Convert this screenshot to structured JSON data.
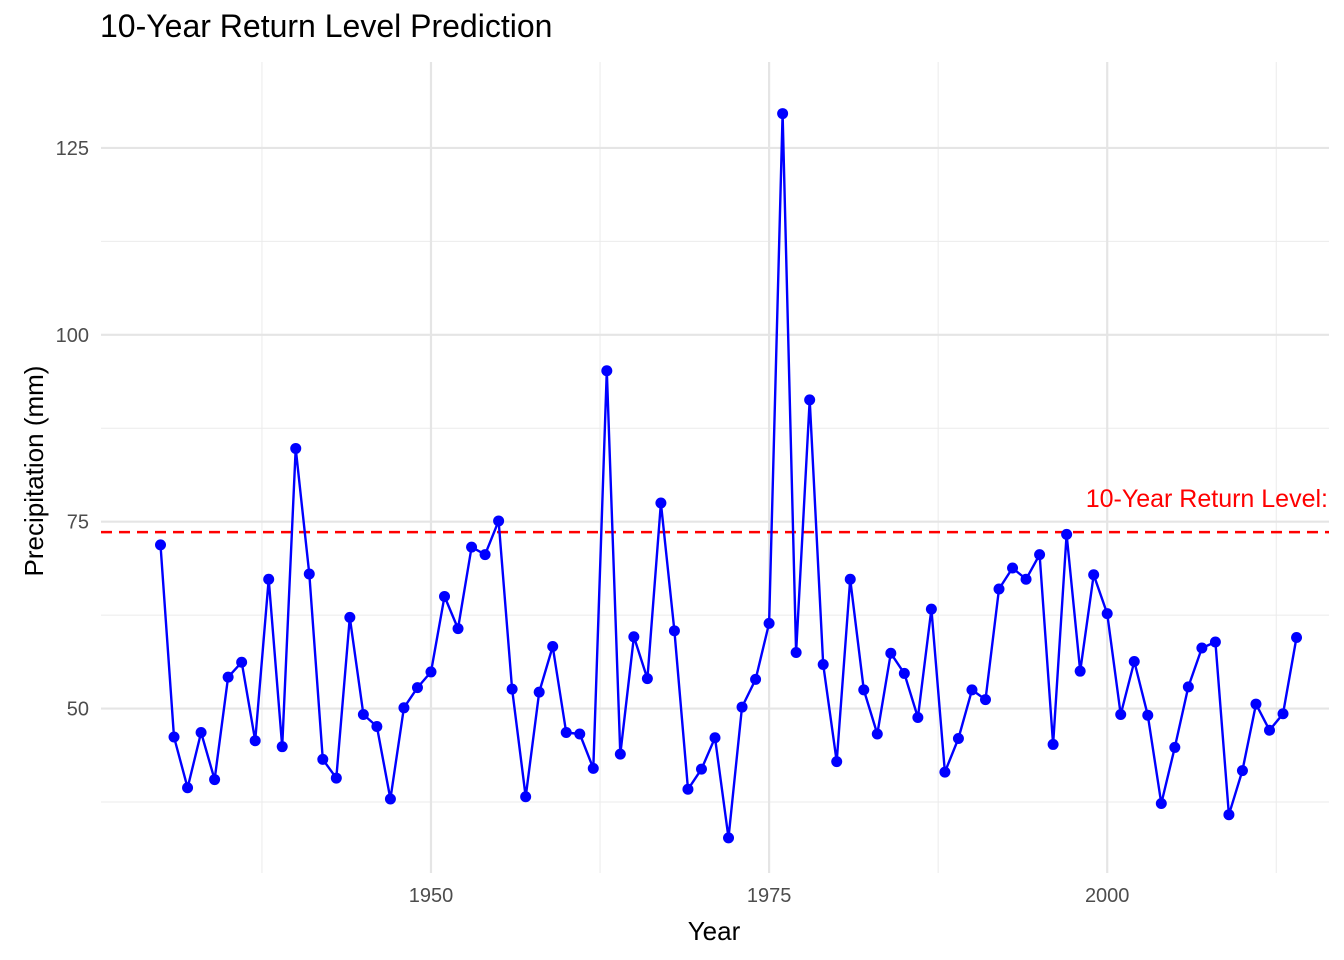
{
  "chart_data": {
    "type": "line",
    "title": "10-Year Return Level Prediction",
    "xlabel": "Year",
    "ylabel": "Precipitation (mm)",
    "xlim": [
      1925.6,
      2016.4
    ],
    "ylim": [
      28.0,
      136.5
    ],
    "x_ticks": [
      1950,
      1975,
      2000
    ],
    "y_ticks": [
      50,
      75,
      100,
      125
    ],
    "x_minor": [
      1937.5,
      1962.5,
      1987.5,
      2012.5
    ],
    "y_minor": [
      37.5,
      62.5,
      87.5,
      112.5
    ],
    "grid": true,
    "series": [
      {
        "color": "#0000ff",
        "x": [
          1930,
          1931,
          1932,
          1933,
          1934,
          1935,
          1936,
          1937,
          1938,
          1939,
          1940,
          1941,
          1942,
          1943,
          1944,
          1945,
          1946,
          1947,
          1948,
          1949,
          1950,
          1951,
          1952,
          1953,
          1954,
          1955,
          1956,
          1957,
          1958,
          1959,
          1960,
          1961,
          1962,
          1963,
          1964,
          1965,
          1966,
          1967,
          1968,
          1969,
          1970,
          1971,
          1972,
          1973,
          1974,
          1975,
          1976,
          1977,
          1978,
          1979,
          1980,
          1981,
          1982,
          1983,
          1984,
          1985,
          1986,
          1987,
          1988,
          1989,
          1990,
          1991,
          1992,
          1993,
          1994,
          1995,
          1996,
          1997,
          1998,
          1999,
          2000,
          2001,
          2002,
          2003,
          2004,
          2005,
          2006,
          2007,
          2008,
          2009,
          2010,
          2011,
          2012,
          2013,
          2014
        ],
        "y": [
          71.9,
          46.2,
          39.4,
          46.8,
          40.5,
          54.2,
          56.2,
          45.7,
          67.3,
          44.9,
          84.8,
          68.0,
          43.2,
          40.7,
          62.2,
          49.2,
          47.6,
          37.9,
          50.1,
          52.8,
          54.9,
          65.0,
          60.7,
          71.6,
          70.6,
          75.1,
          52.6,
          38.2,
          52.2,
          58.3,
          46.8,
          46.6,
          42.0,
          95.2,
          43.9,
          59.6,
          54.0,
          77.5,
          60.4,
          39.2,
          41.9,
          46.1,
          32.7,
          50.2,
          53.9,
          61.4,
          129.6,
          57.5,
          91.3,
          55.9,
          42.9,
          67.3,
          52.5,
          46.6,
          57.4,
          54.7,
          48.8,
          63.3,
          41.5,
          46.0,
          52.5,
          51.2,
          66.0,
          68.8,
          67.3,
          70.6,
          45.2,
          73.3,
          55.0,
          67.9,
          62.7,
          49.2,
          56.3,
          49.1,
          37.3,
          44.8,
          52.9,
          58.1,
          58.9,
          35.8,
          41.7,
          50.6,
          47.1,
          49.3,
          59.5
        ]
      }
    ],
    "reference_line": {
      "y": 73.6,
      "color": "#ff0000",
      "style": "dashed",
      "label": "10-Year Return Level:"
    }
  }
}
